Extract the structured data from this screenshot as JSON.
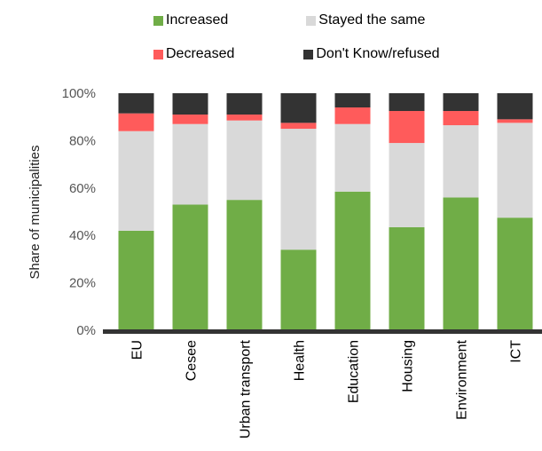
{
  "chart_data": {
    "type": "bar",
    "stacked": true,
    "categories": [
      "EU",
      "Cesee",
      "Urban transport",
      "Health",
      "Education",
      "Housing",
      "Environment",
      "ICT"
    ],
    "series": [
      {
        "name": "Increased",
        "color": "#70ad47",
        "values": [
          42,
          53,
          55,
          34,
          58.5,
          43.5,
          56,
          47.5
        ]
      },
      {
        "name": "Stayed the same",
        "color": "#d9d9d9",
        "values": [
          42,
          34,
          33.5,
          51,
          28.5,
          35.5,
          30.5,
          40
        ]
      },
      {
        "name": "Decreased",
        "color": "#ff5b5b",
        "values": [
          7.5,
          4,
          2.5,
          2.5,
          7,
          13.5,
          6,
          1.5
        ]
      },
      {
        "name": "Don't Know/refused",
        "color": "#333333",
        "values": [
          8.5,
          9,
          9,
          12.5,
          6,
          7.5,
          7.5,
          11
        ]
      }
    ],
    "ylabel": "Share of municipalities",
    "ylim": [
      0,
      100
    ],
    "yticks": [
      "0%",
      "20%",
      "40%",
      "60%",
      "80%",
      "100%"
    ],
    "legend_position": "top",
    "grid": false
  }
}
